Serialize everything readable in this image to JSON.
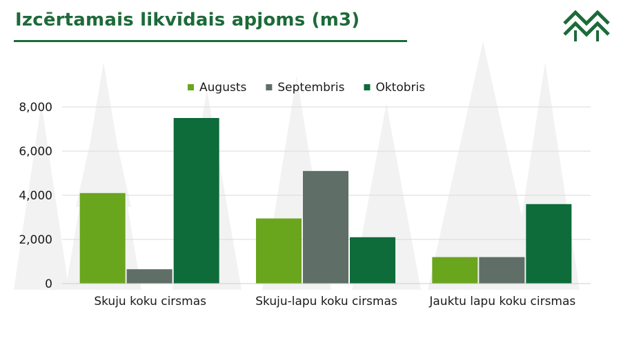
{
  "header": {
    "title": "Izcērtamais likvīdais apjoms (m3)",
    "logo_icon": "forest-trees-logo-icon"
  },
  "colors": {
    "brand": "#1d6a3a",
    "augusts": "#6aa51e",
    "septembris": "#5f6e66",
    "oktobris": "#0e6b3a",
    "grid": "#d9d9d9"
  },
  "chart_data": {
    "type": "bar",
    "title": "Izcērtamais likvīdais apjoms (m3)",
    "xlabel": "",
    "ylabel": "",
    "categories": [
      "Skuju koku cirsmas",
      "Skuju-lapu koku cirsmas",
      "Jauktu lapu koku cirsmas"
    ],
    "series": [
      {
        "name": "Augusts",
        "values": [
          4100,
          2950,
          1200
        ]
      },
      {
        "name": "Septembris",
        "values": [
          650,
          5100,
          1200
        ]
      },
      {
        "name": "Oktobris",
        "values": [
          7500,
          2100,
          3600
        ]
      }
    ],
    "yticks": [
      "0",
      "2,000",
      "4,000",
      "6,000",
      "8,000"
    ],
    "ylim": [
      0,
      8000
    ],
    "grid": true,
    "legend_position": "top"
  }
}
